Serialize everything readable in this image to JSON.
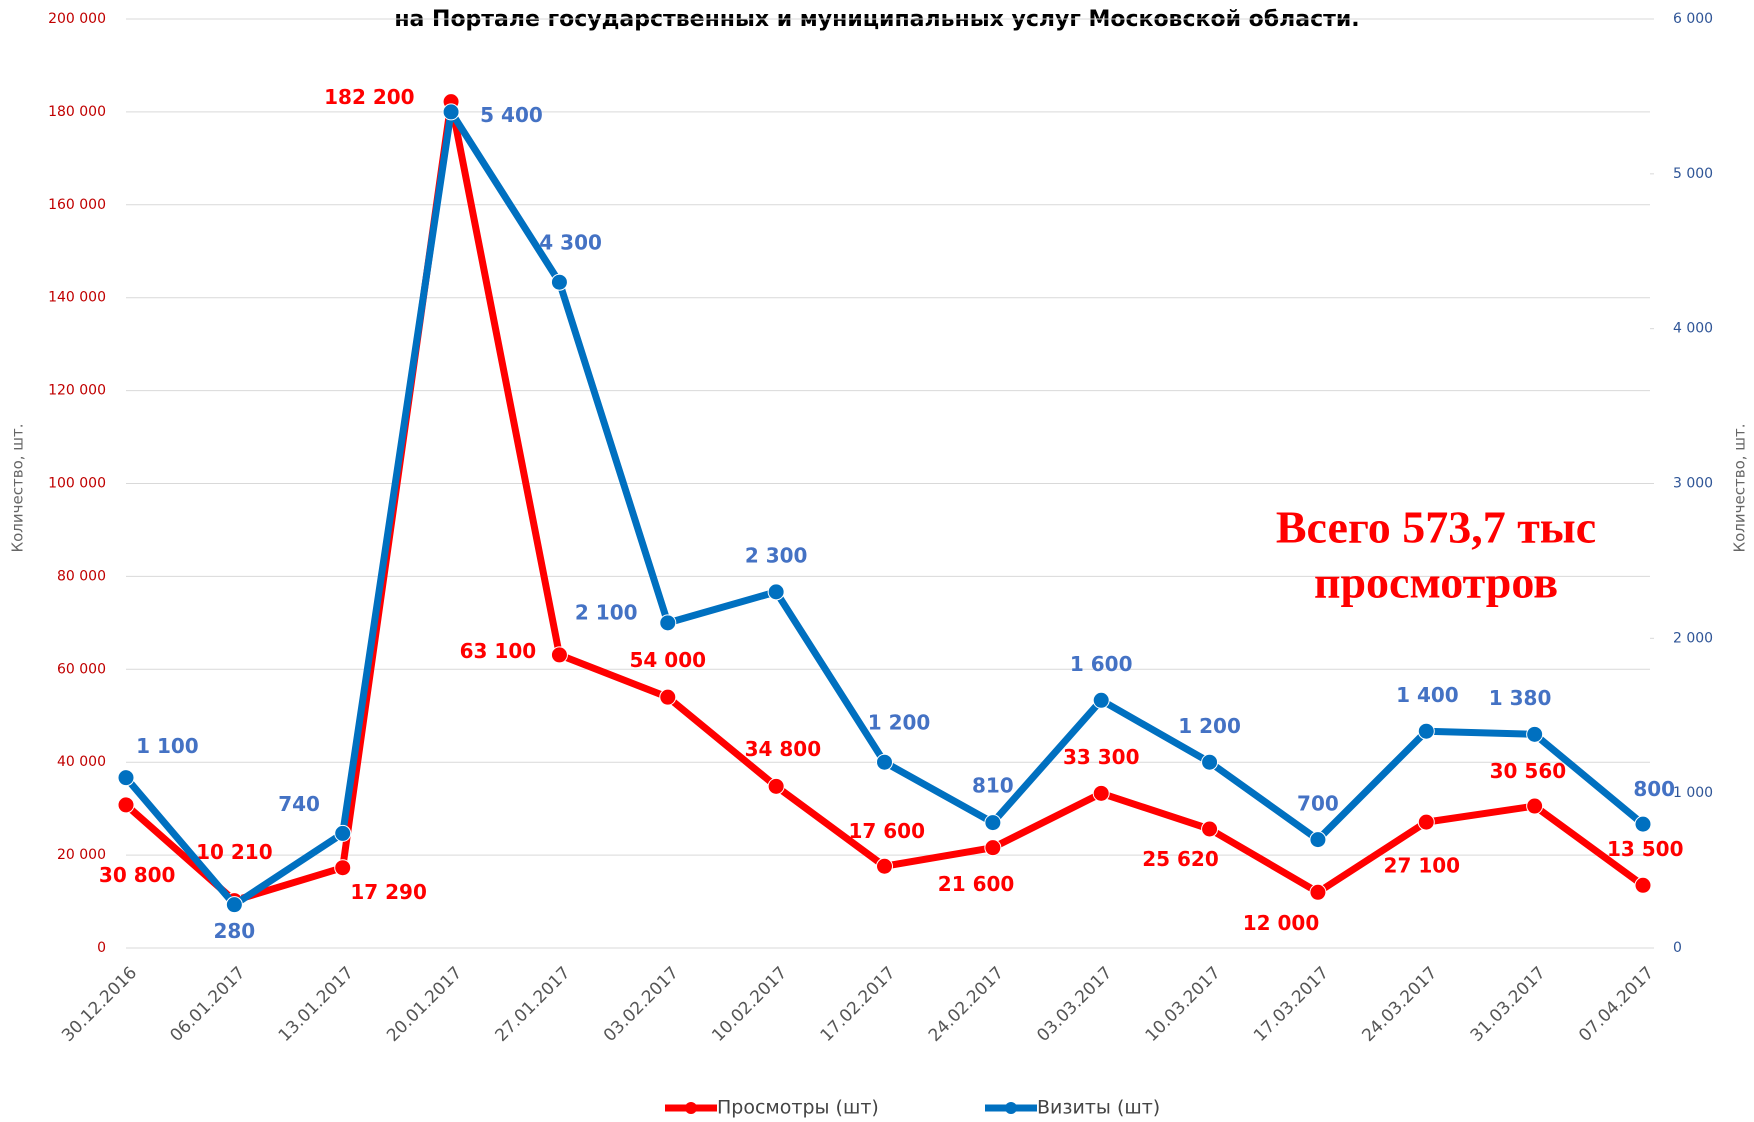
{
  "chart_data": {
    "type": "line",
    "title": "на Портале государственных и муниципальных услуг Московской области.",
    "y_label": "Количество, шт.",
    "y2_label": "Количество, шт.",
    "annotation": [
      "Всего 573,7 тыс",
      "просмотров"
    ],
    "categories": [
      "30.12.2016",
      "06.01.2017",
      "13.01.2017",
      "20.01.2017",
      "27.01.2017",
      "03.02.2017",
      "10.02.2017",
      "17.02.2017",
      "24.02.2017",
      "03.03.2017",
      "10.03.2017",
      "17.03.2017",
      "24.03.2017",
      "31.03.2017",
      "07.04.2017"
    ],
    "series": [
      {
        "name": "Просмотры (шт)",
        "color": "#ff0000",
        "values": [
          30800,
          10210,
          17290,
          182200,
          63100,
          54000,
          34800,
          17600,
          21600,
          33300,
          25620,
          12000,
          27100,
          30560,
          13500
        ],
        "value_labels": [
          "30 800",
          "10 210",
          "17 290",
          "182 200",
          "63 100",
          "54 000",
          "34 800",
          "17 600",
          "21 600",
          "33 300",
          "25 620",
          "12 000",
          "27 100",
          "30 560",
          "13 500"
        ]
      },
      {
        "name": "Визиты (шт)",
        "color": "#0070c0",
        "axis": "y2",
        "values": [
          1100,
          280,
          740,
          5400,
          4300,
          2100,
          2300,
          1200,
          810,
          1600,
          1200,
          700,
          1400,
          1380,
          800
        ],
        "value_labels": [
          "1 100",
          "280",
          "740",
          "5 400",
          "4 300",
          "2 100",
          "2 300",
          "1 200",
          "810",
          "1 600",
          "1 200",
          "700",
          "1 400",
          "1 380",
          "800"
        ]
      }
    ],
    "ylim": [
      0,
      200000
    ],
    "yticks": [
      0,
      {
        "value": 20000,
        "label": "20 000"
      },
      {
        "value": 40000,
        "label": "40 000"
      },
      {
        "value": 60000,
        "label": "60 000"
      },
      {
        "value": 80000,
        "label": "80 000"
      },
      {
        "value": 100000,
        "label": "100 000"
      },
      {
        "value": 120000,
        "label": "120 000"
      },
      {
        "value": 140000,
        "label": "140 000"
      },
      {
        "value": 160000,
        "label": "160 000"
      },
      {
        "value": 180000,
        "label": "180 000"
      },
      {
        "value": 200000,
        "label": "200 000"
      }
    ],
    "y2lim": [
      0,
      6000
    ],
    "y2ticks": [
      0,
      {
        "value": 1000,
        "label": "1 000"
      },
      {
        "value": 2000,
        "label": "2 000"
      },
      {
        "value": 3000,
        "label": "3 000"
      },
      {
        "value": 4000,
        "label": "4 000"
      },
      {
        "value": 5000,
        "label": "5 000"
      },
      {
        "value": 6000,
        "label": "6 000"
      }
    ],
    "grid": true,
    "legend": "bottom"
  }
}
